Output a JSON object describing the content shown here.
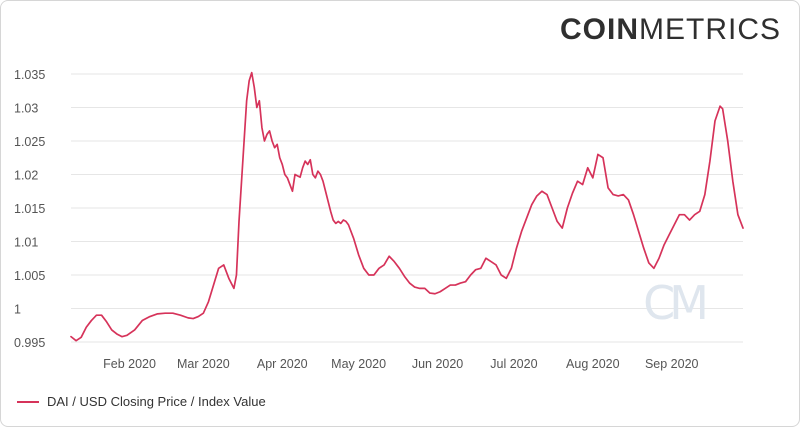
{
  "brand": {
    "part1": "COIN",
    "part2": "METRICS"
  },
  "watermark": "CM",
  "colors": {
    "line": "#d6335a",
    "grid": "#e6e6e6",
    "text": "#555555",
    "watermark": "#dfe6ee"
  },
  "legend": {
    "label": "DAI / USD Closing Price / Index Value"
  },
  "chart_data": {
    "type": "line",
    "title": "",
    "xlabel": "",
    "ylabel": "",
    "ylim": [
      0.995,
      1.035
    ],
    "xlim": [
      "2020-01-09",
      "2020-09-29"
    ],
    "y_ticks": [
      {
        "value": 0.995,
        "label": "0.995"
      },
      {
        "value": 1.0,
        "label": "1"
      },
      {
        "value": 1.005,
        "label": "1.005"
      },
      {
        "value": 1.01,
        "label": "1.01"
      },
      {
        "value": 1.015,
        "label": "1.015"
      },
      {
        "value": 1.02,
        "label": "1.02"
      },
      {
        "value": 1.025,
        "label": "1.025"
      },
      {
        "value": 1.03,
        "label": "1.03"
      },
      {
        "value": 1.035,
        "label": "1.035"
      }
    ],
    "x_ticks": [
      {
        "date": "2020-02-01",
        "label": "Feb 2020"
      },
      {
        "date": "2020-03-01",
        "label": "Mar 2020"
      },
      {
        "date": "2020-04-01",
        "label": "Apr 2020"
      },
      {
        "date": "2020-05-01",
        "label": "May 2020"
      },
      {
        "date": "2020-06-01",
        "label": "Jun 2020"
      },
      {
        "date": "2020-07-01",
        "label": "Jul 2020"
      },
      {
        "date": "2020-08-01",
        "label": "Aug 2020"
      },
      {
        "date": "2020-09-01",
        "label": "Sep 2020"
      }
    ],
    "grid": true,
    "legend_position": "bottom-left",
    "series": [
      {
        "name": "DAI / USD Closing Price / Index Value",
        "points": [
          [
            "2020-01-09",
            0.9958
          ],
          [
            "2020-01-11",
            0.9952
          ],
          [
            "2020-01-13",
            0.9957
          ],
          [
            "2020-01-15",
            0.9972
          ],
          [
            "2020-01-17",
            0.9982
          ],
          [
            "2020-01-19",
            0.999
          ],
          [
            "2020-01-21",
            0.999
          ],
          [
            "2020-01-23",
            0.998
          ],
          [
            "2020-01-25",
            0.9968
          ],
          [
            "2020-01-27",
            0.9962
          ],
          [
            "2020-01-29",
            0.9958
          ],
          [
            "2020-01-31",
            0.996
          ],
          [
            "2020-02-03",
            0.9968
          ],
          [
            "2020-02-06",
            0.9982
          ],
          [
            "2020-02-09",
            0.9988
          ],
          [
            "2020-02-12",
            0.9992
          ],
          [
            "2020-02-15",
            0.9993
          ],
          [
            "2020-02-18",
            0.9993
          ],
          [
            "2020-02-21",
            0.999
          ],
          [
            "2020-02-24",
            0.9986
          ],
          [
            "2020-02-26",
            0.9985
          ],
          [
            "2020-02-28",
            0.9988
          ],
          [
            "2020-03-01",
            0.9993
          ],
          [
            "2020-03-03",
            1.001
          ],
          [
            "2020-03-05",
            1.0035
          ],
          [
            "2020-03-07",
            1.006
          ],
          [
            "2020-03-09",
            1.0065
          ],
          [
            "2020-03-11",
            1.0045
          ],
          [
            "2020-03-13",
            1.003
          ],
          [
            "2020-03-14",
            1.005
          ],
          [
            "2020-03-15",
            1.013
          ],
          [
            "2020-03-16",
            1.019
          ],
          [
            "2020-03-17",
            1.025
          ],
          [
            "2020-03-18",
            1.031
          ],
          [
            "2020-03-19",
            1.034
          ],
          [
            "2020-03-20",
            1.0352
          ],
          [
            "2020-03-21",
            1.033
          ],
          [
            "2020-03-22",
            1.03
          ],
          [
            "2020-03-23",
            1.031
          ],
          [
            "2020-03-24",
            1.027
          ],
          [
            "2020-03-25",
            1.025
          ],
          [
            "2020-03-26",
            1.026
          ],
          [
            "2020-03-27",
            1.0265
          ],
          [
            "2020-03-28",
            1.025
          ],
          [
            "2020-03-29",
            1.024
          ],
          [
            "2020-03-30",
            1.0245
          ],
          [
            "2020-03-31",
            1.0225
          ],
          [
            "2020-04-01",
            1.0215
          ],
          [
            "2020-04-02",
            1.02
          ],
          [
            "2020-04-03",
            1.0195
          ],
          [
            "2020-04-04",
            1.0185
          ],
          [
            "2020-04-05",
            1.0175
          ],
          [
            "2020-04-06",
            1.02
          ],
          [
            "2020-04-07",
            1.0198
          ],
          [
            "2020-04-08",
            1.0196
          ],
          [
            "2020-04-09",
            1.021
          ],
          [
            "2020-04-10",
            1.022
          ],
          [
            "2020-04-11",
            1.0215
          ],
          [
            "2020-04-12",
            1.0222
          ],
          [
            "2020-04-13",
            1.02
          ],
          [
            "2020-04-14",
            1.0195
          ],
          [
            "2020-04-15",
            1.0205
          ],
          [
            "2020-04-16",
            1.02
          ],
          [
            "2020-04-17",
            1.019
          ],
          [
            "2020-04-18",
            1.0175
          ],
          [
            "2020-04-19",
            1.016
          ],
          [
            "2020-04-20",
            1.0145
          ],
          [
            "2020-04-21",
            1.0132
          ],
          [
            "2020-04-22",
            1.0127
          ],
          [
            "2020-04-23",
            1.013
          ],
          [
            "2020-04-24",
            1.0127
          ],
          [
            "2020-04-25",
            1.0132
          ],
          [
            "2020-04-26",
            1.013
          ],
          [
            "2020-04-27",
            1.0125
          ],
          [
            "2020-04-29",
            1.0105
          ],
          [
            "2020-05-01",
            1.008
          ],
          [
            "2020-05-03",
            1.006
          ],
          [
            "2020-05-05",
            1.005
          ],
          [
            "2020-05-07",
            1.005
          ],
          [
            "2020-05-09",
            1.006
          ],
          [
            "2020-05-11",
            1.0065
          ],
          [
            "2020-05-13",
            1.0078
          ],
          [
            "2020-05-15",
            1.007
          ],
          [
            "2020-05-17",
            1.006
          ],
          [
            "2020-05-19",
            1.0048
          ],
          [
            "2020-05-21",
            1.0038
          ],
          [
            "2020-05-23",
            1.0032
          ],
          [
            "2020-05-25",
            1.003
          ],
          [
            "2020-05-27",
            1.003
          ],
          [
            "2020-05-29",
            1.0023
          ],
          [
            "2020-05-31",
            1.0022
          ],
          [
            "2020-06-02",
            1.0025
          ],
          [
            "2020-06-04",
            1.003
          ],
          [
            "2020-06-06",
            1.0035
          ],
          [
            "2020-06-08",
            1.0035
          ],
          [
            "2020-06-10",
            1.0038
          ],
          [
            "2020-06-12",
            1.004
          ],
          [
            "2020-06-14",
            1.005
          ],
          [
            "2020-06-16",
            1.0058
          ],
          [
            "2020-06-18",
            1.006
          ],
          [
            "2020-06-20",
            1.0075
          ],
          [
            "2020-06-22",
            1.007
          ],
          [
            "2020-06-24",
            1.0065
          ],
          [
            "2020-06-26",
            1.005
          ],
          [
            "2020-06-28",
            1.0045
          ],
          [
            "2020-06-30",
            1.006
          ],
          [
            "2020-07-02",
            1.009
          ],
          [
            "2020-07-04",
            1.0115
          ],
          [
            "2020-07-06",
            1.0135
          ],
          [
            "2020-07-08",
            1.0155
          ],
          [
            "2020-07-10",
            1.0168
          ],
          [
            "2020-07-12",
            1.0175
          ],
          [
            "2020-07-14",
            1.017
          ],
          [
            "2020-07-16",
            1.015
          ],
          [
            "2020-07-18",
            1.013
          ],
          [
            "2020-07-20",
            1.012
          ],
          [
            "2020-07-22",
            1.015
          ],
          [
            "2020-07-24",
            1.0172
          ],
          [
            "2020-07-26",
            1.019
          ],
          [
            "2020-07-28",
            1.0185
          ],
          [
            "2020-07-30",
            1.021
          ],
          [
            "2020-08-01",
            1.0195
          ],
          [
            "2020-08-03",
            1.023
          ],
          [
            "2020-08-05",
            1.0225
          ],
          [
            "2020-08-07",
            1.018
          ],
          [
            "2020-08-09",
            1.017
          ],
          [
            "2020-08-11",
            1.0168
          ],
          [
            "2020-08-13",
            1.017
          ],
          [
            "2020-08-15",
            1.0162
          ],
          [
            "2020-08-17",
            1.014
          ],
          [
            "2020-08-19",
            1.0115
          ],
          [
            "2020-08-21",
            1.009
          ],
          [
            "2020-08-23",
            1.0068
          ],
          [
            "2020-08-25",
            1.006
          ],
          [
            "2020-08-27",
            1.0075
          ],
          [
            "2020-08-29",
            1.0095
          ],
          [
            "2020-08-31",
            1.011
          ],
          [
            "2020-09-02",
            1.0125
          ],
          [
            "2020-09-04",
            1.014
          ],
          [
            "2020-09-06",
            1.014
          ],
          [
            "2020-09-08",
            1.0132
          ],
          [
            "2020-09-10",
            1.014
          ],
          [
            "2020-09-12",
            1.0145
          ],
          [
            "2020-09-14",
            1.017
          ],
          [
            "2020-09-16",
            1.022
          ],
          [
            "2020-09-18",
            1.028
          ],
          [
            "2020-09-20",
            1.0302
          ],
          [
            "2020-09-21",
            1.0298
          ],
          [
            "2020-09-23",
            1.025
          ],
          [
            "2020-09-25",
            1.019
          ],
          [
            "2020-09-27",
            1.014
          ],
          [
            "2020-09-29",
            1.012
          ]
        ]
      }
    ]
  }
}
